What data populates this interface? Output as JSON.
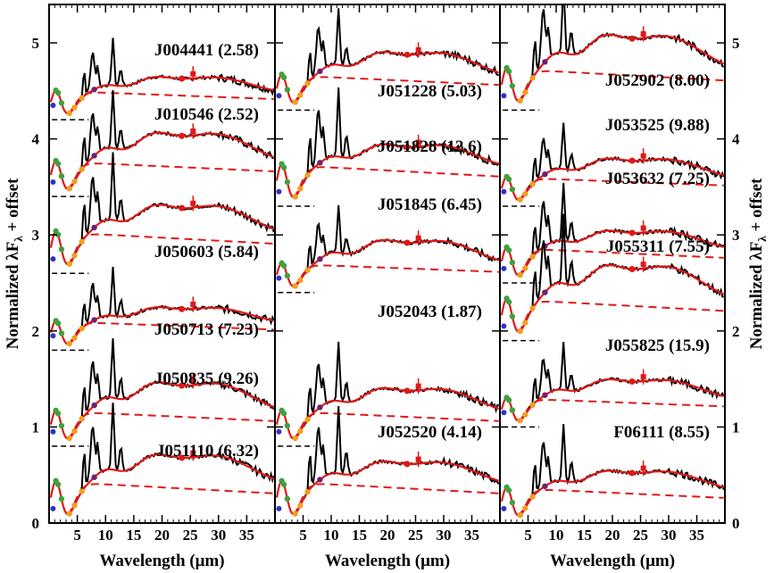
{
  "chart_data": {
    "type": "line",
    "xlabel": "Wavelength (μm)",
    "ylabel": "Normalized λF",
    "ylabel_sub": "λ",
    "ylabel_suffix": " + offset",
    "xlim": [
      0,
      40
    ],
    "ylim": [
      0,
      5.4
    ],
    "x_ticks": [
      5,
      10,
      15,
      20,
      25,
      30,
      35
    ],
    "y_ticks": [
      0,
      1,
      2,
      3,
      4,
      5
    ],
    "colors": {
      "spectrum": "#000000",
      "model": "#e01818",
      "photometry": "#e01818",
      "silicate": "#e0a020",
      "dot_blue": "#3030c8",
      "dot_green": "#40a040",
      "dot_orange": "#f0a020",
      "dot_purple": "#702070"
    },
    "legend": "none",
    "panels": [
      {
        "spectra": [
          {
            "name": "J004441",
            "value": "(2.58)",
            "offset": 4.2
          },
          {
            "name": "J010546",
            "value": "(2.52)",
            "offset": 3.4
          },
          {
            "name": "J050603",
            "value": "(5.84)",
            "offset": 2.6
          },
          {
            "name": "J050713",
            "value": "(7.23)",
            "offset": 1.8
          },
          {
            "name": "J050835",
            "value": "(9.26)",
            "offset": 0.8
          },
          {
            "name": "J051110",
            "value": "(6.32)",
            "offset": 0.0
          }
        ]
      },
      {
        "spectra": [
          {
            "name": "J051228",
            "value": "(5.03)",
            "offset": 4.3
          },
          {
            "name": "J051828",
            "value": "(12.6)",
            "offset": 3.3
          },
          {
            "name": "J051845",
            "value": "(6.45)",
            "offset": 2.4
          },
          {
            "name": "J052043",
            "value": "(1.87)",
            "offset": 0.8
          },
          {
            "name": "J052520",
            "value": "(4.14)",
            "offset": 0.0
          }
        ]
      },
      {
        "spectra": [
          {
            "name": "J052902",
            "value": "(8.00)",
            "offset": 4.3
          },
          {
            "name": "J053525",
            "value": "(9.88)",
            "offset": 3.3
          },
          {
            "name": "J053632",
            "value": "(7.25)",
            "offset": 2.5
          },
          {
            "name": "J055311",
            "value": "(7.55)",
            "offset": 1.9
          },
          {
            "name": "J055825",
            "value": "(15.9)",
            "offset": 1.0
          },
          {
            "name": "F06111",
            "value": "(8.55)",
            "offset": 0.0
          }
        ]
      }
    ]
  }
}
